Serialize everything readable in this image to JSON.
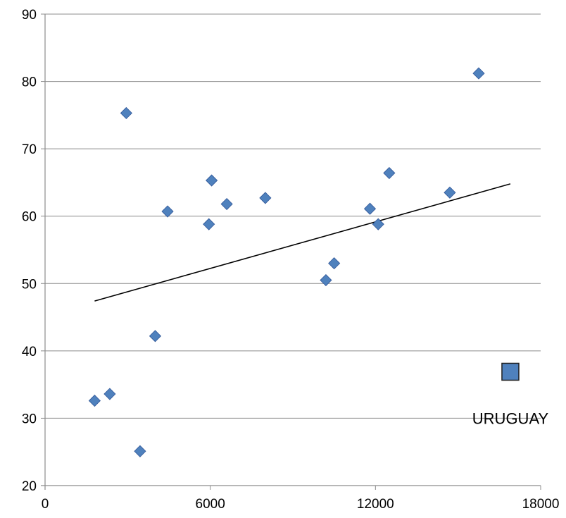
{
  "chart_data": {
    "type": "scatter",
    "title": "",
    "xlabel": "",
    "ylabel": "",
    "xlim": [
      0,
      18000
    ],
    "ylim": [
      20,
      90
    ],
    "xticks": [
      "0",
      "6000",
      "12000",
      "18000"
    ],
    "yticks": [
      "20",
      "30",
      "40",
      "50",
      "60",
      "70",
      "80",
      "90"
    ],
    "grid": "horizontal",
    "legend": "none",
    "colors": {
      "marker": "#4f81bd",
      "marker_edge": "#2f5597",
      "highlight": "#4f81bd",
      "trendline": "#000000",
      "grid": "#8c8c8c"
    },
    "series": [
      {
        "marker": "diamond",
        "points": [
          {
            "x": 1800,
            "y": 32.6
          },
          {
            "x": 2350,
            "y": 33.6
          },
          {
            "x": 2950,
            "y": 75.3
          },
          {
            "x": 3450,
            "y": 25.1
          },
          {
            "x": 4000,
            "y": 42.2
          },
          {
            "x": 4450,
            "y": 60.7
          },
          {
            "x": 5950,
            "y": 58.8
          },
          {
            "x": 6050,
            "y": 65.3
          },
          {
            "x": 6600,
            "y": 61.8
          },
          {
            "x": 8000,
            "y": 62.7
          },
          {
            "x": 10200,
            "y": 50.5
          },
          {
            "x": 10500,
            "y": 53.0
          },
          {
            "x": 11800,
            "y": 61.1
          },
          {
            "x": 12100,
            "y": 58.8
          },
          {
            "x": 12500,
            "y": 66.4
          },
          {
            "x": 14700,
            "y": 63.5
          },
          {
            "x": 15750,
            "y": 81.2
          }
        ]
      }
    ],
    "highlight_point": {
      "marker": "square",
      "x": 16900,
      "y": 36.9
    },
    "trendline": {
      "x": [
        1800,
        16900
      ],
      "y": [
        47.4,
        64.8
      ]
    },
    "annotations": [
      {
        "text": "URUGUAY",
        "x": 16900,
        "y": 30.0
      }
    ]
  }
}
